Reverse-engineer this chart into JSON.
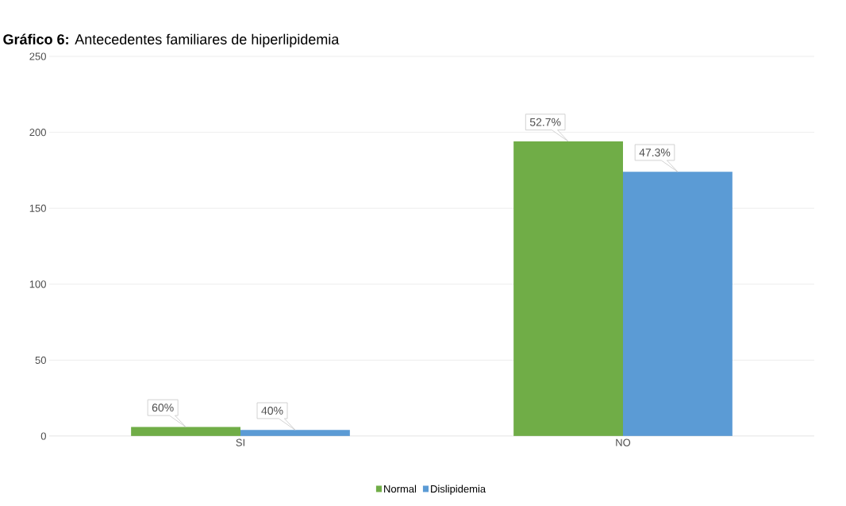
{
  "chart_data": {
    "type": "bar",
    "title": "**Gráfico 6:** Antecedentes familiares de hiperlipidemia",
    "categories": [
      "SI",
      "NO"
    ],
    "series": [
      {
        "name": "Normal",
        "color": "#70ad47",
        "values": [
          6,
          194
        ]
      },
      {
        "name": "Dislipidemia",
        "color": "#5b9bd5",
        "values": [
          4,
          174
        ]
      }
    ],
    "annotations": [
      "60%",
      "52.7%",
      "40%",
      "47.3%"
    ],
    "ylim": [
      0,
      250
    ],
    "yticks": [
      0,
      50,
      100,
      150,
      200,
      250
    ],
    "grid": "y",
    "legend": "bottom"
  }
}
